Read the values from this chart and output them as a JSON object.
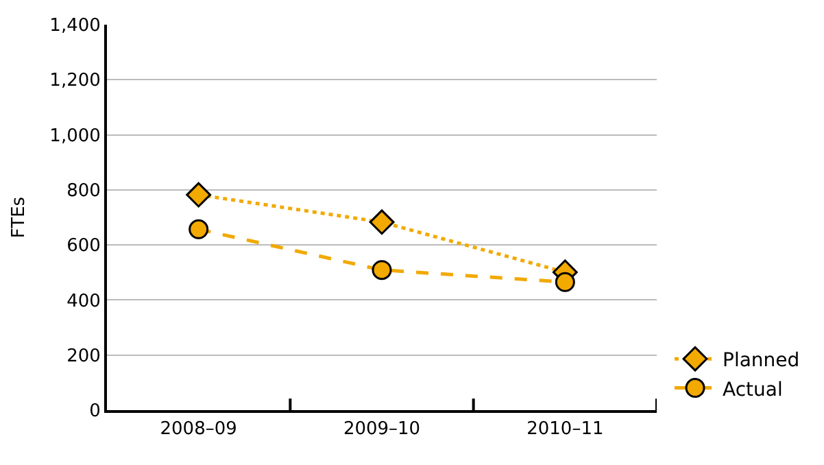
{
  "chart_data": {
    "type": "line",
    "ylabel": "FTEs",
    "categories": [
      "2008–09",
      "2009–10",
      "2010–11"
    ],
    "series": [
      {
        "name": "Planned",
        "color": "#f2a900",
        "values": [
          782,
          683,
          501
        ],
        "marker": "diamond",
        "line_style": "dotted"
      },
      {
        "name": "Actual",
        "color": "#f2a900",
        "values": [
          657,
          509,
          465
        ],
        "marker": "circle",
        "line_style": "dashed"
      }
    ],
    "ylim": [
      0,
      1400
    ],
    "yticks": [
      0,
      {
        "value": 200,
        "label": "200"
      },
      {
        "value": 400,
        "label": "400"
      },
      {
        "value": 600,
        "label": "600"
      },
      {
        "value": 800,
        "label": "800"
      },
      {
        "value": 1000,
        "label": "1,000"
      },
      {
        "value": 1200,
        "label": "1,200"
      },
      {
        "value": 1400,
        "label": "1,400"
      }
    ],
    "grid": "y",
    "legend": "bottom right"
  }
}
